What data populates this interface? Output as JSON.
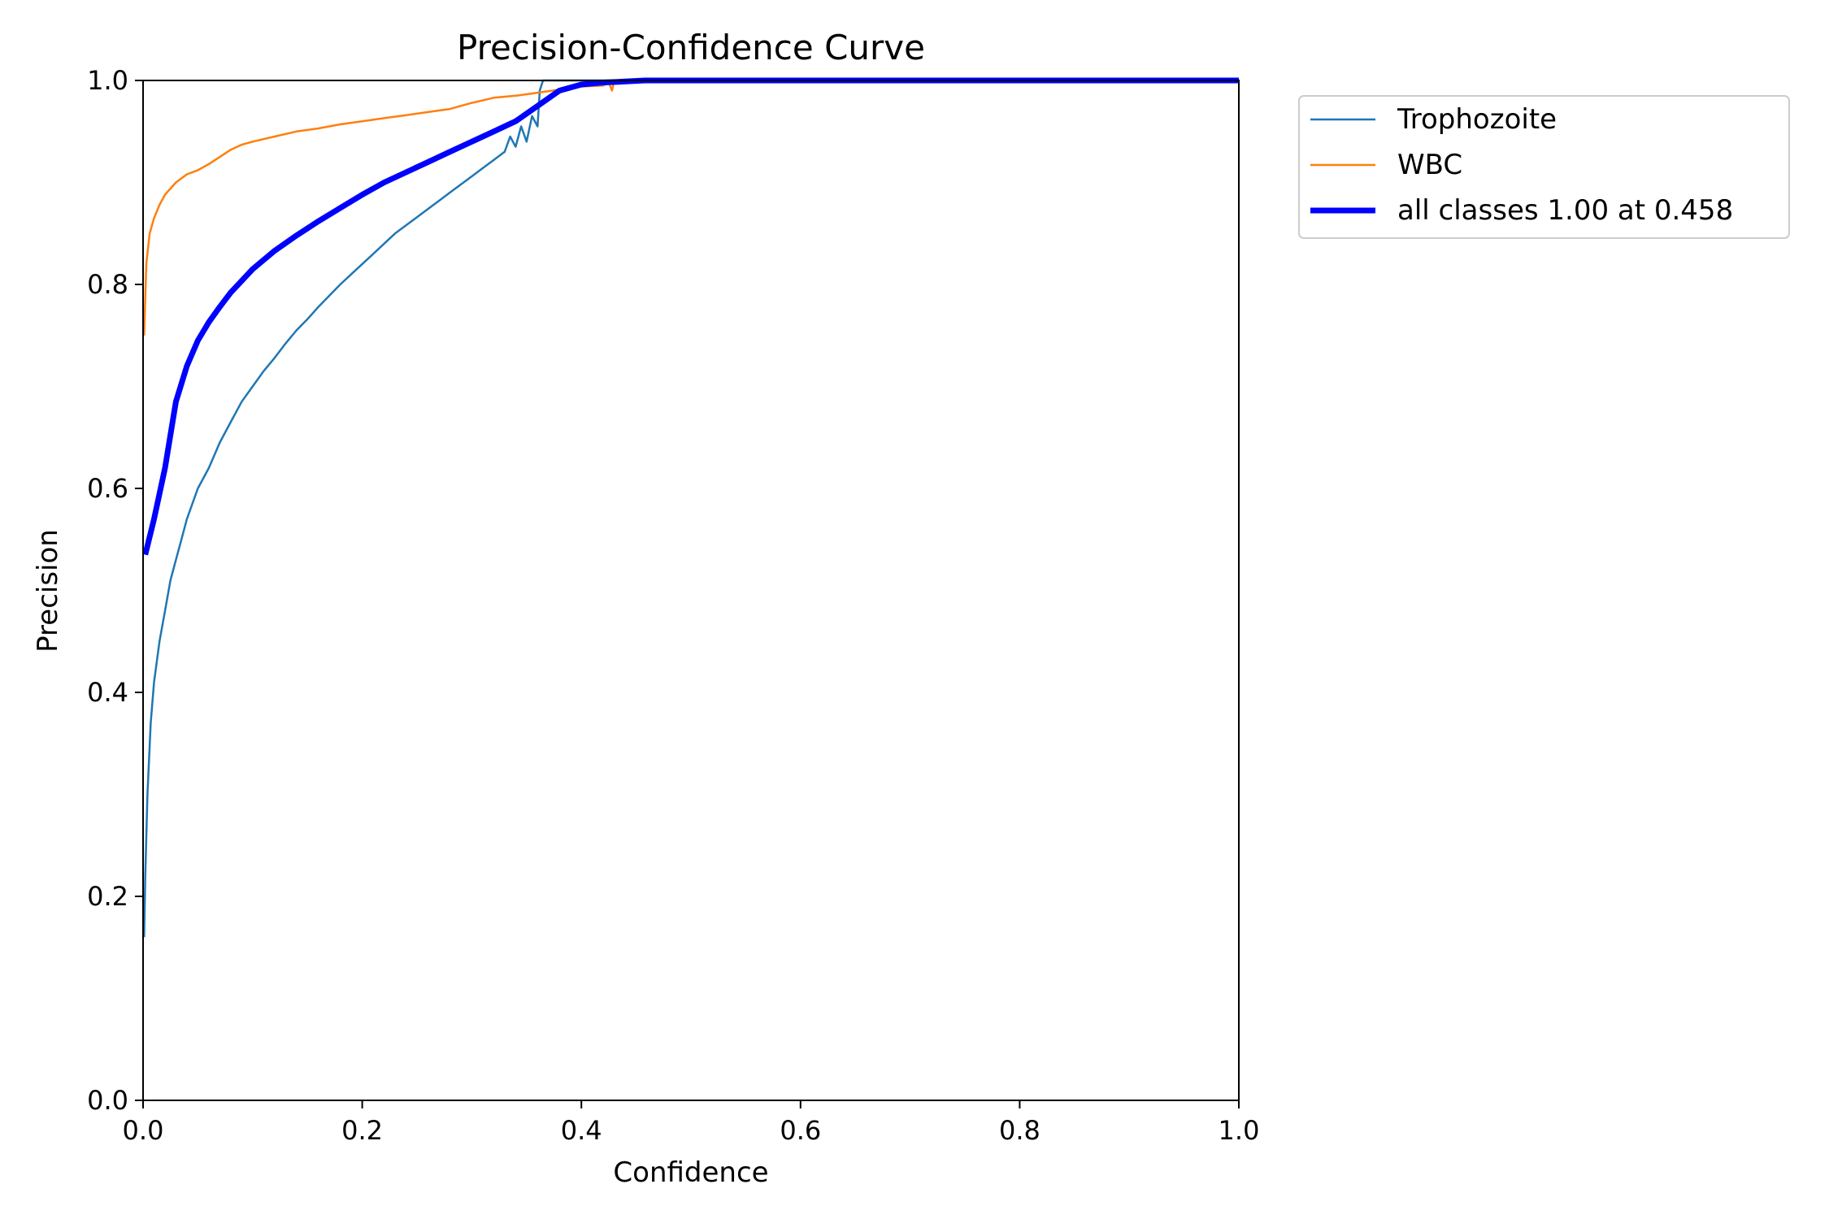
{
  "chart_data": {
    "type": "line",
    "title": "Precision-Confidence Curve",
    "xlabel": "Confidence",
    "ylabel": "Precision",
    "xlim": [
      0,
      1
    ],
    "ylim": [
      0,
      1
    ],
    "xticks": [
      "0.0",
      "0.2",
      "0.4",
      "0.6",
      "0.8",
      "1.0"
    ],
    "yticks": [
      "0.0",
      "0.2",
      "0.4",
      "0.6",
      "0.8",
      "1.0"
    ],
    "grid": false,
    "legend_position": "outside-top-right",
    "series": [
      {
        "name": "Trophozoite",
        "color": "#1f77b4",
        "width": "thin",
        "points": [
          [
            0.001,
            0.16
          ],
          [
            0.002,
            0.22
          ],
          [
            0.004,
            0.3
          ],
          [
            0.007,
            0.37
          ],
          [
            0.01,
            0.41
          ],
          [
            0.015,
            0.45
          ],
          [
            0.02,
            0.48
          ],
          [
            0.025,
            0.51
          ],
          [
            0.03,
            0.53
          ],
          [
            0.035,
            0.55
          ],
          [
            0.04,
            0.57
          ],
          [
            0.05,
            0.6
          ],
          [
            0.06,
            0.62
          ],
          [
            0.07,
            0.645
          ],
          [
            0.08,
            0.665
          ],
          [
            0.09,
            0.685
          ],
          [
            0.1,
            0.7
          ],
          [
            0.11,
            0.715
          ],
          [
            0.12,
            0.728
          ],
          [
            0.13,
            0.742
          ],
          [
            0.14,
            0.755
          ],
          [
            0.15,
            0.766
          ],
          [
            0.16,
            0.778
          ],
          [
            0.17,
            0.789
          ],
          [
            0.18,
            0.8
          ],
          [
            0.19,
            0.81
          ],
          [
            0.2,
            0.82
          ],
          [
            0.21,
            0.83
          ],
          [
            0.22,
            0.84
          ],
          [
            0.23,
            0.85
          ],
          [
            0.24,
            0.858
          ],
          [
            0.25,
            0.866
          ],
          [
            0.26,
            0.874
          ],
          [
            0.27,
            0.882
          ],
          [
            0.28,
            0.89
          ],
          [
            0.29,
            0.898
          ],
          [
            0.3,
            0.906
          ],
          [
            0.31,
            0.914
          ],
          [
            0.32,
            0.922
          ],
          [
            0.33,
            0.93
          ],
          [
            0.335,
            0.945
          ],
          [
            0.34,
            0.935
          ],
          [
            0.345,
            0.955
          ],
          [
            0.35,
            0.94
          ],
          [
            0.355,
            0.965
          ],
          [
            0.36,
            0.955
          ],
          [
            0.362,
            0.99
          ],
          [
            0.365,
            1.0
          ],
          [
            0.4,
            1.0
          ],
          [
            0.6,
            1.0
          ],
          [
            0.8,
            1.0
          ],
          [
            1.0,
            1.0
          ]
        ]
      },
      {
        "name": "WBC",
        "color": "#ff7f0e",
        "width": "thin",
        "points": [
          [
            0.001,
            0.75
          ],
          [
            0.003,
            0.82
          ],
          [
            0.006,
            0.85
          ],
          [
            0.01,
            0.865
          ],
          [
            0.015,
            0.878
          ],
          [
            0.02,
            0.888
          ],
          [
            0.03,
            0.9
          ],
          [
            0.04,
            0.908
          ],
          [
            0.05,
            0.912
          ],
          [
            0.06,
            0.918
          ],
          [
            0.07,
            0.925
          ],
          [
            0.08,
            0.932
          ],
          [
            0.09,
            0.937
          ],
          [
            0.1,
            0.94
          ],
          [
            0.12,
            0.945
          ],
          [
            0.14,
            0.95
          ],
          [
            0.16,
            0.953
          ],
          [
            0.18,
            0.957
          ],
          [
            0.2,
            0.96
          ],
          [
            0.22,
            0.963
          ],
          [
            0.24,
            0.966
          ],
          [
            0.26,
            0.969
          ],
          [
            0.28,
            0.972
          ],
          [
            0.3,
            0.978
          ],
          [
            0.32,
            0.983
          ],
          [
            0.34,
            0.985
          ],
          [
            0.36,
            0.988
          ],
          [
            0.38,
            0.991
          ],
          [
            0.4,
            0.994
          ],
          [
            0.42,
            0.995
          ],
          [
            0.425,
            0.998
          ],
          [
            0.428,
            0.99
          ],
          [
            0.43,
            1.0
          ],
          [
            0.5,
            1.0
          ],
          [
            0.7,
            1.0
          ],
          [
            1.0,
            1.0
          ]
        ]
      },
      {
        "name": "all classes 1.00 at 0.458",
        "color": "#0000ff",
        "width": "thick",
        "points": [
          [
            0.002,
            0.535
          ],
          [
            0.01,
            0.57
          ],
          [
            0.02,
            0.62
          ],
          [
            0.03,
            0.685
          ],
          [
            0.04,
            0.72
          ],
          [
            0.05,
            0.745
          ],
          [
            0.06,
            0.763
          ],
          [
            0.07,
            0.778
          ],
          [
            0.08,
            0.792
          ],
          [
            0.1,
            0.815
          ],
          [
            0.12,
            0.833
          ],
          [
            0.14,
            0.848
          ],
          [
            0.16,
            0.862
          ],
          [
            0.18,
            0.875
          ],
          [
            0.2,
            0.888
          ],
          [
            0.22,
            0.9
          ],
          [
            0.24,
            0.91
          ],
          [
            0.26,
            0.92
          ],
          [
            0.28,
            0.93
          ],
          [
            0.3,
            0.94
          ],
          [
            0.32,
            0.95
          ],
          [
            0.34,
            0.96
          ],
          [
            0.36,
            0.975
          ],
          [
            0.38,
            0.99
          ],
          [
            0.4,
            0.996
          ],
          [
            0.42,
            0.998
          ],
          [
            0.44,
            0.999
          ],
          [
            0.458,
            1.0
          ],
          [
            0.5,
            1.0
          ],
          [
            0.7,
            1.0
          ],
          [
            1.0,
            1.0
          ]
        ]
      }
    ]
  }
}
